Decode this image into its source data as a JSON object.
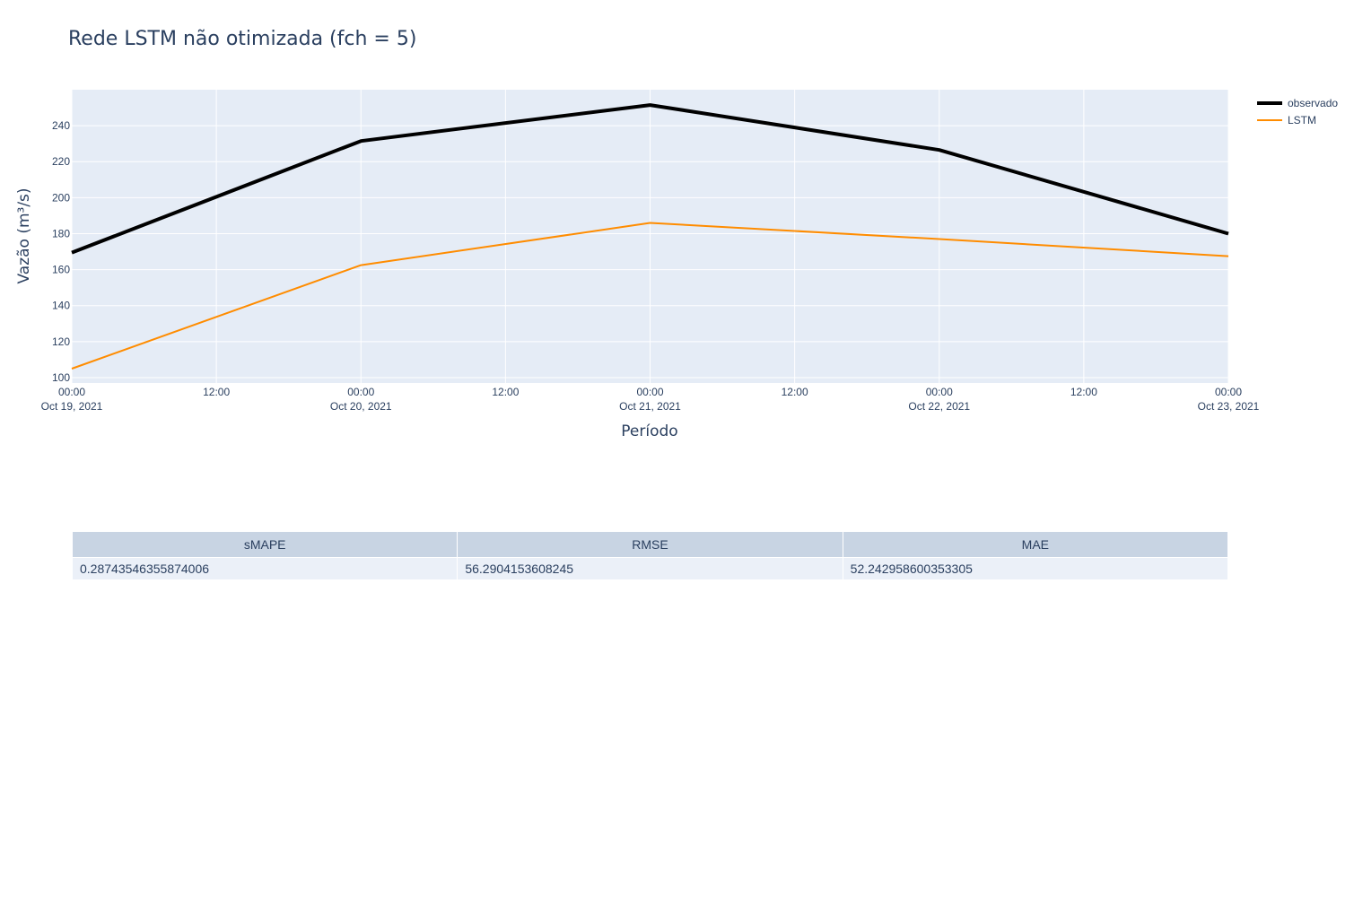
{
  "chart_data": {
    "type": "line",
    "title": "Rede LSTM não otimizada (fch = 5)",
    "xlabel": "Período",
    "ylabel": "Vazão (m³/s)",
    "x": [
      "2021-10-19 00:00",
      "2021-10-20 00:00",
      "2021-10-21 00:00",
      "2021-10-22 00:00",
      "2021-10-23 00:00"
    ],
    "xlim": [
      "2021-10-19 00:00",
      "2021-10-23 00:00"
    ],
    "ylim": [
      97,
      260
    ],
    "grid": true,
    "legend_position": "top-right",
    "series": [
      {
        "name": "observado",
        "color": "#000000",
        "values": [
          169.5,
          231.5,
          251.5,
          226.5,
          180
        ]
      },
      {
        "name": "LSTM",
        "color": "#ff8c00",
        "values": [
          105,
          162.5,
          186,
          177,
          167.5
        ]
      }
    ],
    "x_ticks": [
      {
        "time": "00:00",
        "date": "Oct 19, 2021"
      },
      {
        "time": "12:00",
        "date": ""
      },
      {
        "time": "00:00",
        "date": "Oct 20, 2021"
      },
      {
        "time": "12:00",
        "date": ""
      },
      {
        "time": "00:00",
        "date": "Oct 21, 2021"
      },
      {
        "time": "12:00",
        "date": ""
      },
      {
        "time": "00:00",
        "date": "Oct 22, 2021"
      },
      {
        "time": "12:00",
        "date": ""
      },
      {
        "time": "00:00",
        "date": "Oct 23, 2021"
      }
    ],
    "y_ticks": [
      100,
      120,
      140,
      160,
      180,
      200,
      220,
      240
    ]
  },
  "metrics_table": {
    "headers": [
      "sMAPE",
      "RMSE",
      "MAE"
    ],
    "values": [
      "0.28743546355874006",
      "56.2904153608245",
      "52.242958600353305"
    ]
  },
  "colors": {
    "plot_background": "#e5ecf6",
    "gridline": "#ffffff",
    "text": "#2a3f5f",
    "table_header": "#c8d4e3",
    "table_cell": "#ebf0f8"
  }
}
